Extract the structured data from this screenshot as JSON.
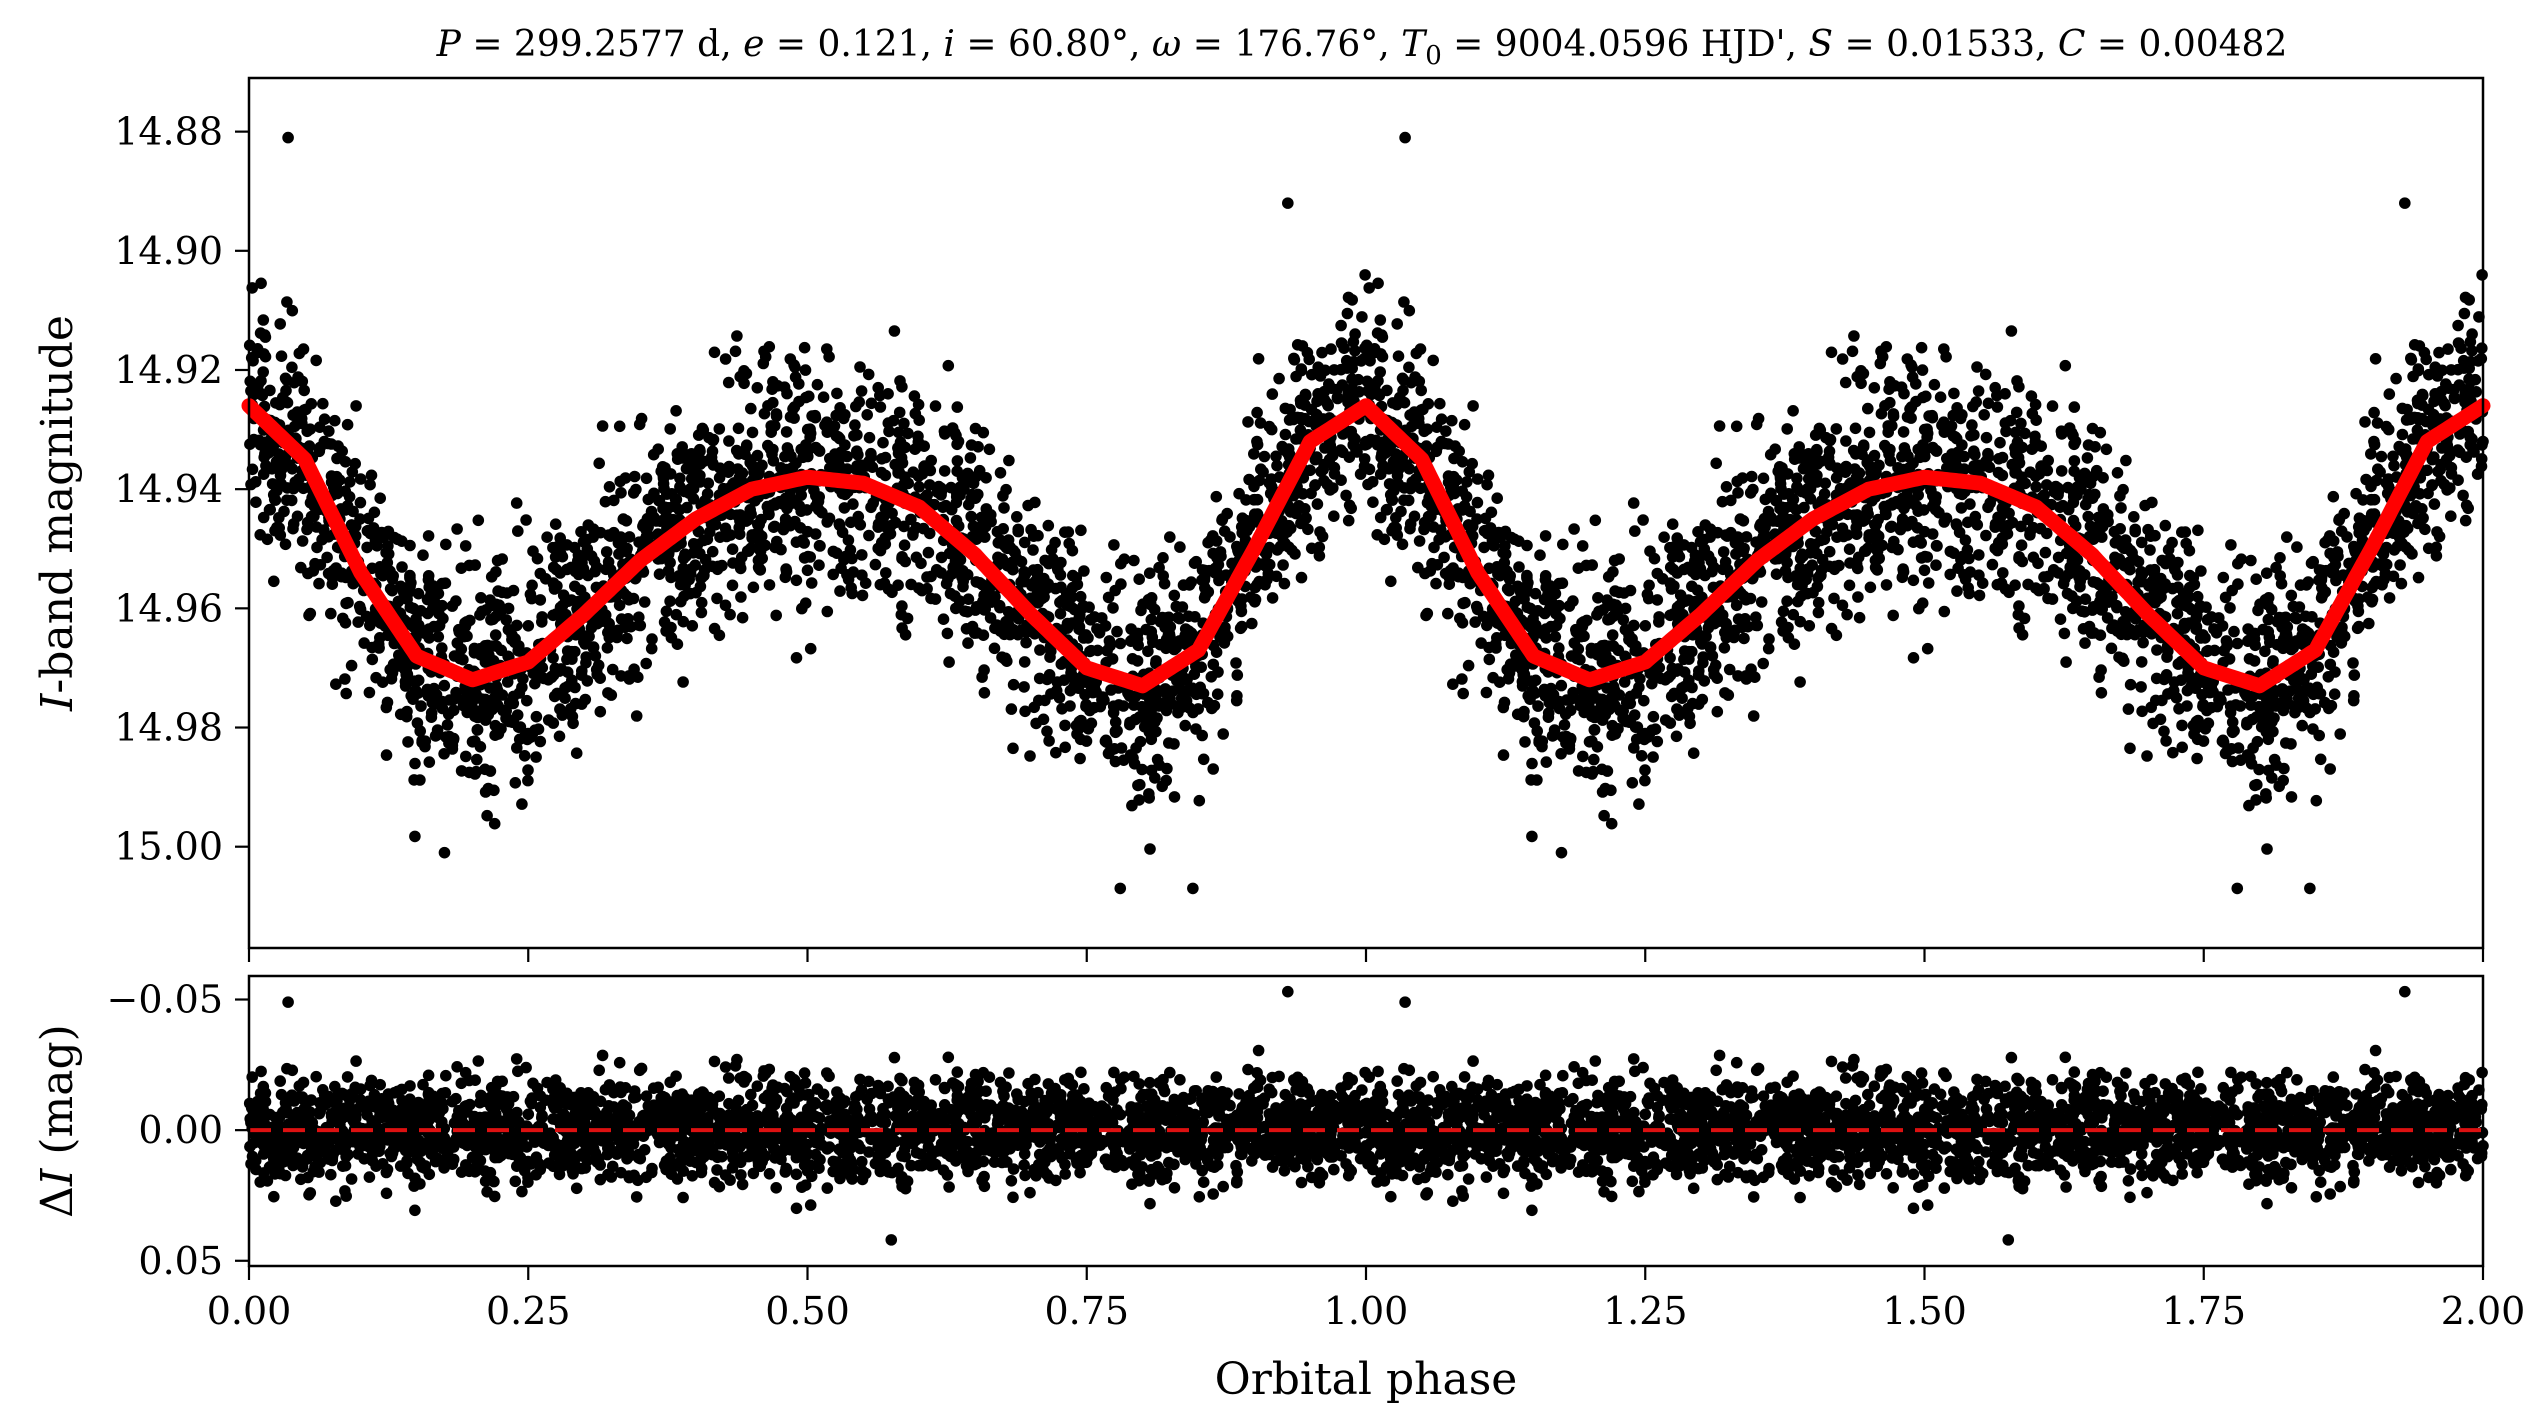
{
  "figure": {
    "title": "P = 299.2577 d, e = 0.121, i = 60.80°, ω = 176.76°, T0 = 9004.0596 HJD', S = 0.01533, C = 0.00482",
    "title_parts": {
      "P": "P",
      "P_val": " = 299.2577 d, ",
      "e": "e",
      "e_val": " = 0.121, ",
      "i": "i",
      "i_val": " = 60.80°, ",
      "w": "ω",
      "w_val": " = 176.76°, ",
      "T": "T",
      "T_sub": "0",
      "T_val": " = 9004.0596 HJD', ",
      "S": "S",
      "S_val": " = 0.01533, ",
      "C": "C",
      "C_val": " = 0.00482"
    },
    "colors": {
      "points": "#000000",
      "model": "#ff0000",
      "zero_line": "#dd1111"
    }
  },
  "chart_data": [
    {
      "type": "scatter",
      "panel": "top",
      "ylabel": "I-band magnitude",
      "ylabel_parts": {
        "var": "I",
        "rest": "-band magnitude"
      },
      "xlabel": "",
      "xlim": [
        0,
        2
      ],
      "ylim": [
        15.017,
        14.871
      ],
      "y_inverted": true,
      "yticks": [
        14.88,
        14.9,
        14.92,
        14.94,
        14.96,
        14.98,
        15.0
      ],
      "ytick_labels": [
        "14.88",
        "14.90",
        "14.92",
        "14.94",
        "14.96",
        "14.98",
        "15.00"
      ],
      "xticks": [
        0,
        0.25,
        0.5,
        0.75,
        1.0,
        1.25,
        1.5,
        1.75,
        2.0
      ],
      "series": [
        {
          "kind": "points",
          "color": "#000000",
          "n_points_per_phase_cycle": 2600,
          "noise_sigma_mag": 0.0095,
          "outliers": [
            [
              0.035,
              14.881
            ],
            [
              1.035,
              14.881
            ],
            [
              0.93,
              14.892
            ],
            [
              1.93,
              14.892
            ],
            [
              0.78,
              15.007
            ],
            [
              0.845,
              15.007
            ],
            [
              1.78,
              15.007
            ],
            [
              1.845,
              15.007
            ],
            [
              0.175,
              15.001
            ],
            [
              1.175,
              15.001
            ]
          ]
        },
        {
          "kind": "line",
          "color": "#ff0000",
          "x": [
            0.0,
            0.05,
            0.1,
            0.15,
            0.2,
            0.25,
            0.3,
            0.35,
            0.4,
            0.45,
            0.5,
            0.55,
            0.6,
            0.65,
            0.7,
            0.75,
            0.8,
            0.85,
            0.9,
            0.95,
            1.0,
            1.05,
            1.1,
            1.15,
            1.2,
            1.25,
            1.3,
            1.35,
            1.4,
            1.45,
            1.5,
            1.55,
            1.6,
            1.65,
            1.7,
            1.75,
            1.8,
            1.85,
            1.9,
            1.95,
            2.0
          ],
          "y": [
            14.926,
            14.935,
            14.954,
            14.968,
            14.972,
            14.969,
            14.961,
            14.952,
            14.945,
            14.94,
            14.938,
            14.939,
            14.943,
            14.951,
            14.961,
            14.97,
            14.973,
            14.967,
            14.95,
            14.932,
            14.926,
            14.935,
            14.954,
            14.968,
            14.972,
            14.969,
            14.961,
            14.952,
            14.945,
            14.94,
            14.938,
            14.939,
            14.943,
            14.951,
            14.961,
            14.97,
            14.973,
            14.967,
            14.95,
            14.932,
            14.926
          ]
        }
      ]
    },
    {
      "type": "scatter",
      "panel": "bottom",
      "xlabel": "Orbital phase",
      "ylabel": "ΔI (mag)",
      "ylabel_parts": {
        "delta": "Δ",
        "var": "I",
        "rest": " (mag)"
      },
      "xlim": [
        0,
        2
      ],
      "ylim": [
        0.052,
        -0.059
      ],
      "y_inverted": true,
      "yticks": [
        -0.05,
        0.0,
        0.05
      ],
      "ytick_labels": [
        "−0.05",
        "0.00",
        "0.05"
      ],
      "xticks": [
        0,
        0.25,
        0.5,
        0.75,
        1.0,
        1.25,
        1.5,
        1.75,
        2.0
      ],
      "xtick_labels": [
        "0.00",
        "0.25",
        "0.50",
        "0.75",
        "1.00",
        "1.25",
        "1.50",
        "1.75",
        "2.00"
      ],
      "series": [
        {
          "kind": "points",
          "color": "#000000",
          "n_points_per_phase_cycle": 2600,
          "noise_sigma_mag": 0.0095,
          "outliers": [
            [
              0.035,
              -0.049
            ],
            [
              1.035,
              -0.049
            ],
            [
              0.93,
              -0.053
            ],
            [
              1.93,
              -0.053
            ],
            [
              0.575,
              0.042
            ],
            [
              1.575,
              0.042
            ]
          ]
        },
        {
          "kind": "hline",
          "y": 0.0,
          "style": "dashed",
          "color": "#dd1111"
        }
      ]
    }
  ]
}
